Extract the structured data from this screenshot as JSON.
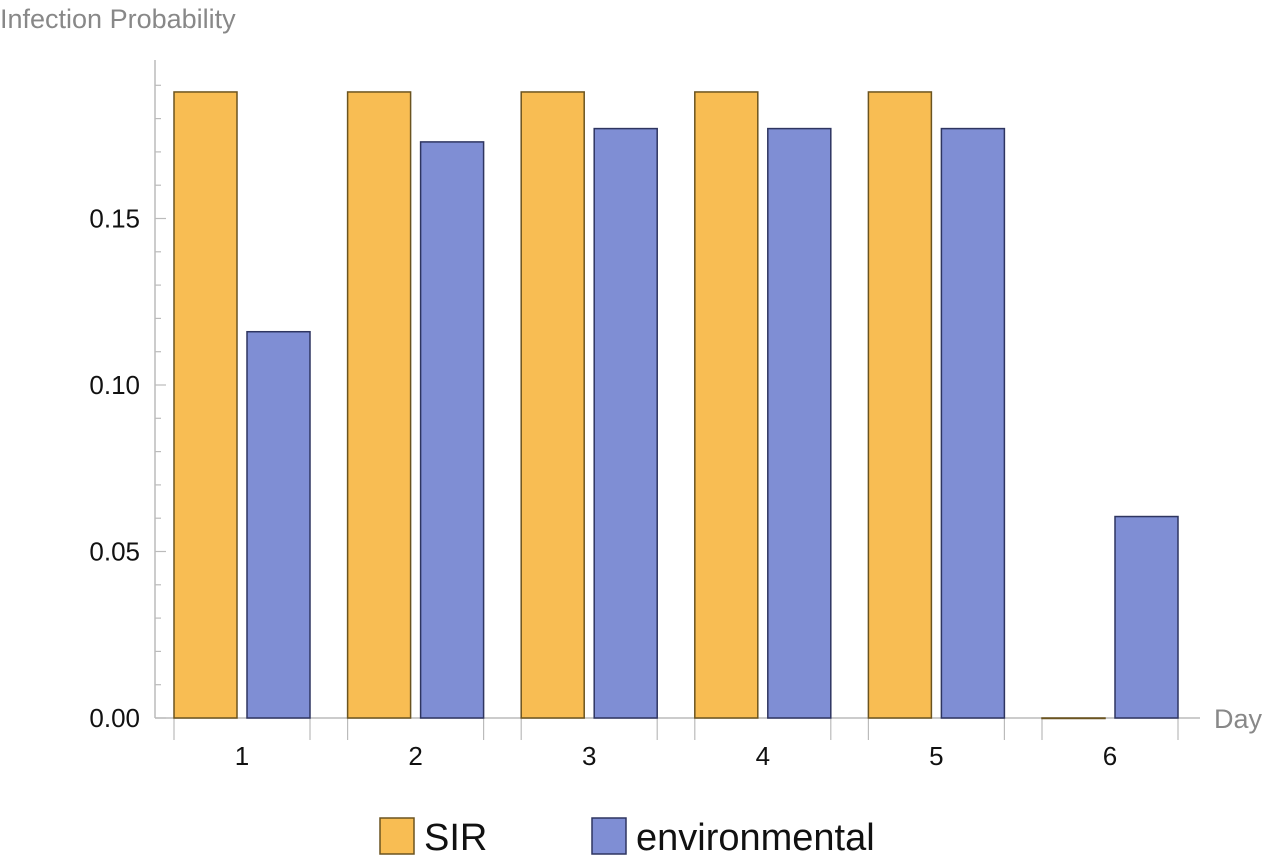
{
  "chart_data": {
    "type": "bar",
    "ylabel": "Infection Probability",
    "xlabel": "Day",
    "categories": [
      "1",
      "2",
      "3",
      "4",
      "5",
      "6"
    ],
    "highlight_category": "6",
    "highlight_color": "#e0141b",
    "series": [
      {
        "name": "SIR",
        "color": "#f8bd53",
        "values": [
          0.188,
          0.188,
          0.188,
          0.188,
          0.188,
          0.0
        ]
      },
      {
        "name": "environmental",
        "color": "#7f8ed4",
        "values": [
          0.116,
          0.173,
          0.177,
          0.177,
          0.177,
          0.0605
        ]
      }
    ],
    "yticks": [
      "0.00",
      "0.05",
      "0.10",
      "0.15"
    ],
    "ylim": [
      0,
      0.195
    ],
    "grid": false,
    "legend_position": "bottom"
  }
}
